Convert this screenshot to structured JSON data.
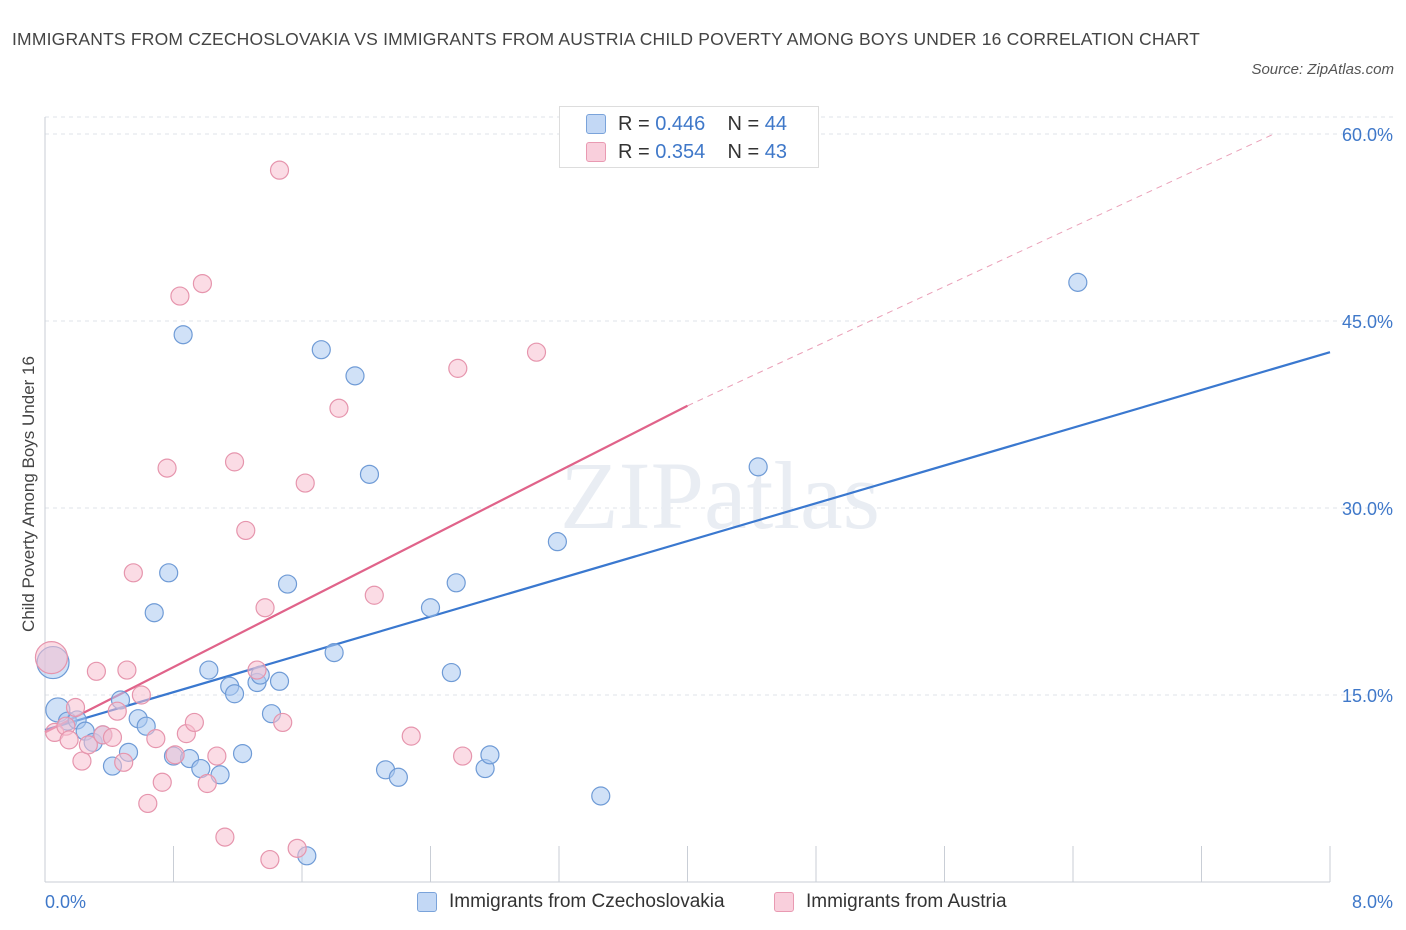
{
  "title": "IMMIGRANTS FROM CZECHOSLOVAKIA VS IMMIGRANTS FROM AUSTRIA CHILD POVERTY AMONG BOYS UNDER 16 CORRELATION CHART",
  "source": "Source: ZipAtlas.com",
  "watermark": "ZIPatlas",
  "legend": {
    "r_label": "R =",
    "n_label": "N =",
    "rows": [
      {
        "r": "0.446",
        "n": "44"
      },
      {
        "r": "0.354",
        "n": "43"
      }
    ]
  },
  "chart_data": {
    "type": "scatter",
    "title": "IMMIGRANTS FROM CZECHOSLOVAKIA VS IMMIGRANTS FROM AUSTRIA CHILD POVERTY AMONG BOYS UNDER 16 CORRELATION CHART",
    "xlabel": "",
    "ylabel": "Child Poverty Among Boys Under 16",
    "xlim": [
      0,
      8
    ],
    "ylim": [
      0,
      60
    ],
    "x_tick_labels": [
      "0.0%",
      "8.0%"
    ],
    "y_ticks": [
      15,
      30,
      45,
      60
    ],
    "y_tick_labels": [
      "15.0%",
      "30.0%",
      "45.0%",
      "60.0%"
    ],
    "grid": true,
    "legend_position": "top-center",
    "colors": {
      "czechoslovakia_fill": "#aac8f0",
      "czechoslovakia_stroke": "#6f9bd6",
      "czechoslovakia_line": "#3a78cf",
      "austria_fill": "#f7bfd0",
      "austria_stroke": "#e695ad",
      "austria_line": "#e0638a",
      "accent_text": "#3f78c9"
    },
    "series": [
      {
        "name": "Immigrants from Czechoslovakia",
        "r": 0.446,
        "n": 44,
        "trend": {
          "x0": 0.0,
          "y0": 12.2,
          "x1": 8.0,
          "y1": 42.5
        },
        "points": [
          [
            0.05,
            17.6,
            16
          ],
          [
            0.08,
            13.8,
            12
          ],
          [
            0.14,
            12.9,
            9
          ],
          [
            0.2,
            13.0,
            9
          ],
          [
            0.25,
            12.1,
            9
          ],
          [
            0.3,
            11.2,
            9
          ],
          [
            0.36,
            11.8,
            9
          ],
          [
            0.42,
            9.3,
            9
          ],
          [
            0.47,
            14.6,
            9
          ],
          [
            0.52,
            10.4,
            9
          ],
          [
            0.58,
            13.1,
            9
          ],
          [
            0.63,
            12.5,
            9
          ],
          [
            0.68,
            21.6,
            9
          ],
          [
            0.77,
            24.8,
            9
          ],
          [
            0.8,
            10.1,
            9
          ],
          [
            0.86,
            43.9,
            9
          ],
          [
            0.9,
            9.9,
            9
          ],
          [
            0.97,
            9.1,
            9
          ],
          [
            1.02,
            17.0,
            9
          ],
          [
            1.09,
            8.6,
            9
          ],
          [
            1.15,
            15.7,
            9
          ],
          [
            1.18,
            15.1,
            9
          ],
          [
            1.23,
            10.3,
            9
          ],
          [
            1.32,
            16.0,
            9
          ],
          [
            1.34,
            16.6,
            9
          ],
          [
            1.41,
            13.5,
            9
          ],
          [
            1.46,
            16.1,
            9
          ],
          [
            1.51,
            23.9,
            9
          ],
          [
            1.63,
            2.1,
            9
          ],
          [
            1.72,
            42.7,
            9
          ],
          [
            1.8,
            18.4,
            9
          ],
          [
            1.93,
            40.6,
            9
          ],
          [
            2.02,
            32.7,
            9
          ],
          [
            2.12,
            9.0,
            9
          ],
          [
            2.2,
            8.4,
            9
          ],
          [
            2.4,
            22.0,
            9
          ],
          [
            2.53,
            16.8,
            9
          ],
          [
            2.56,
            24.0,
            9
          ],
          [
            2.74,
            9.1,
            9
          ],
          [
            2.77,
            10.2,
            9
          ],
          [
            3.19,
            27.3,
            9
          ],
          [
            3.46,
            6.9,
            9
          ],
          [
            4.44,
            33.3,
            9
          ],
          [
            6.43,
            48.1,
            9
          ]
        ]
      },
      {
        "name": "Immigrants from Austria",
        "r": 0.354,
        "n": 43,
        "trend": {
          "x0": 0.0,
          "y0": 12.0,
          "x1": 4.0,
          "y1": 38.2,
          "dash_x1": 7.65,
          "dash_y1": 60.0
        },
        "points": [
          [
            0.04,
            18.0,
            16
          ],
          [
            0.06,
            12.0,
            9
          ],
          [
            0.13,
            12.5,
            9
          ],
          [
            0.15,
            11.4,
            9
          ],
          [
            0.19,
            14.0,
            9
          ],
          [
            0.23,
            9.7,
            9
          ],
          [
            0.27,
            11.0,
            9
          ],
          [
            0.32,
            16.9,
            9
          ],
          [
            0.36,
            11.8,
            9
          ],
          [
            0.42,
            11.6,
            9
          ],
          [
            0.45,
            13.7,
            9
          ],
          [
            0.49,
            9.6,
            9
          ],
          [
            0.51,
            17.0,
            9
          ],
          [
            0.55,
            24.8,
            9
          ],
          [
            0.6,
            15.0,
            9
          ],
          [
            0.64,
            6.3,
            9
          ],
          [
            0.69,
            11.5,
            9
          ],
          [
            0.73,
            8.0,
            9
          ],
          [
            0.76,
            33.2,
            9
          ],
          [
            0.81,
            10.2,
            9
          ],
          [
            0.84,
            47.0,
            9
          ],
          [
            0.88,
            11.9,
            9
          ],
          [
            0.93,
            12.8,
            9
          ],
          [
            0.98,
            48.0,
            9
          ],
          [
            1.01,
            7.9,
            9
          ],
          [
            1.07,
            10.1,
            9
          ],
          [
            1.12,
            3.6,
            9
          ],
          [
            1.18,
            33.7,
            9
          ],
          [
            1.25,
            28.2,
            9
          ],
          [
            1.32,
            17.0,
            9
          ],
          [
            1.37,
            22.0,
            9
          ],
          [
            1.4,
            1.8,
            9
          ],
          [
            1.46,
            57.1,
            9
          ],
          [
            1.48,
            12.8,
            9
          ],
          [
            1.57,
            2.7,
            9
          ],
          [
            1.62,
            32.0,
            9
          ],
          [
            1.83,
            38.0,
            9
          ],
          [
            2.05,
            23.0,
            9
          ],
          [
            2.28,
            11.7,
            9
          ],
          [
            2.57,
            41.2,
            9
          ],
          [
            2.6,
            10.1,
            9
          ],
          [
            3.06,
            42.5,
            9
          ],
          [
            0.98,
            7.6,
            0
          ]
        ]
      }
    ]
  }
}
